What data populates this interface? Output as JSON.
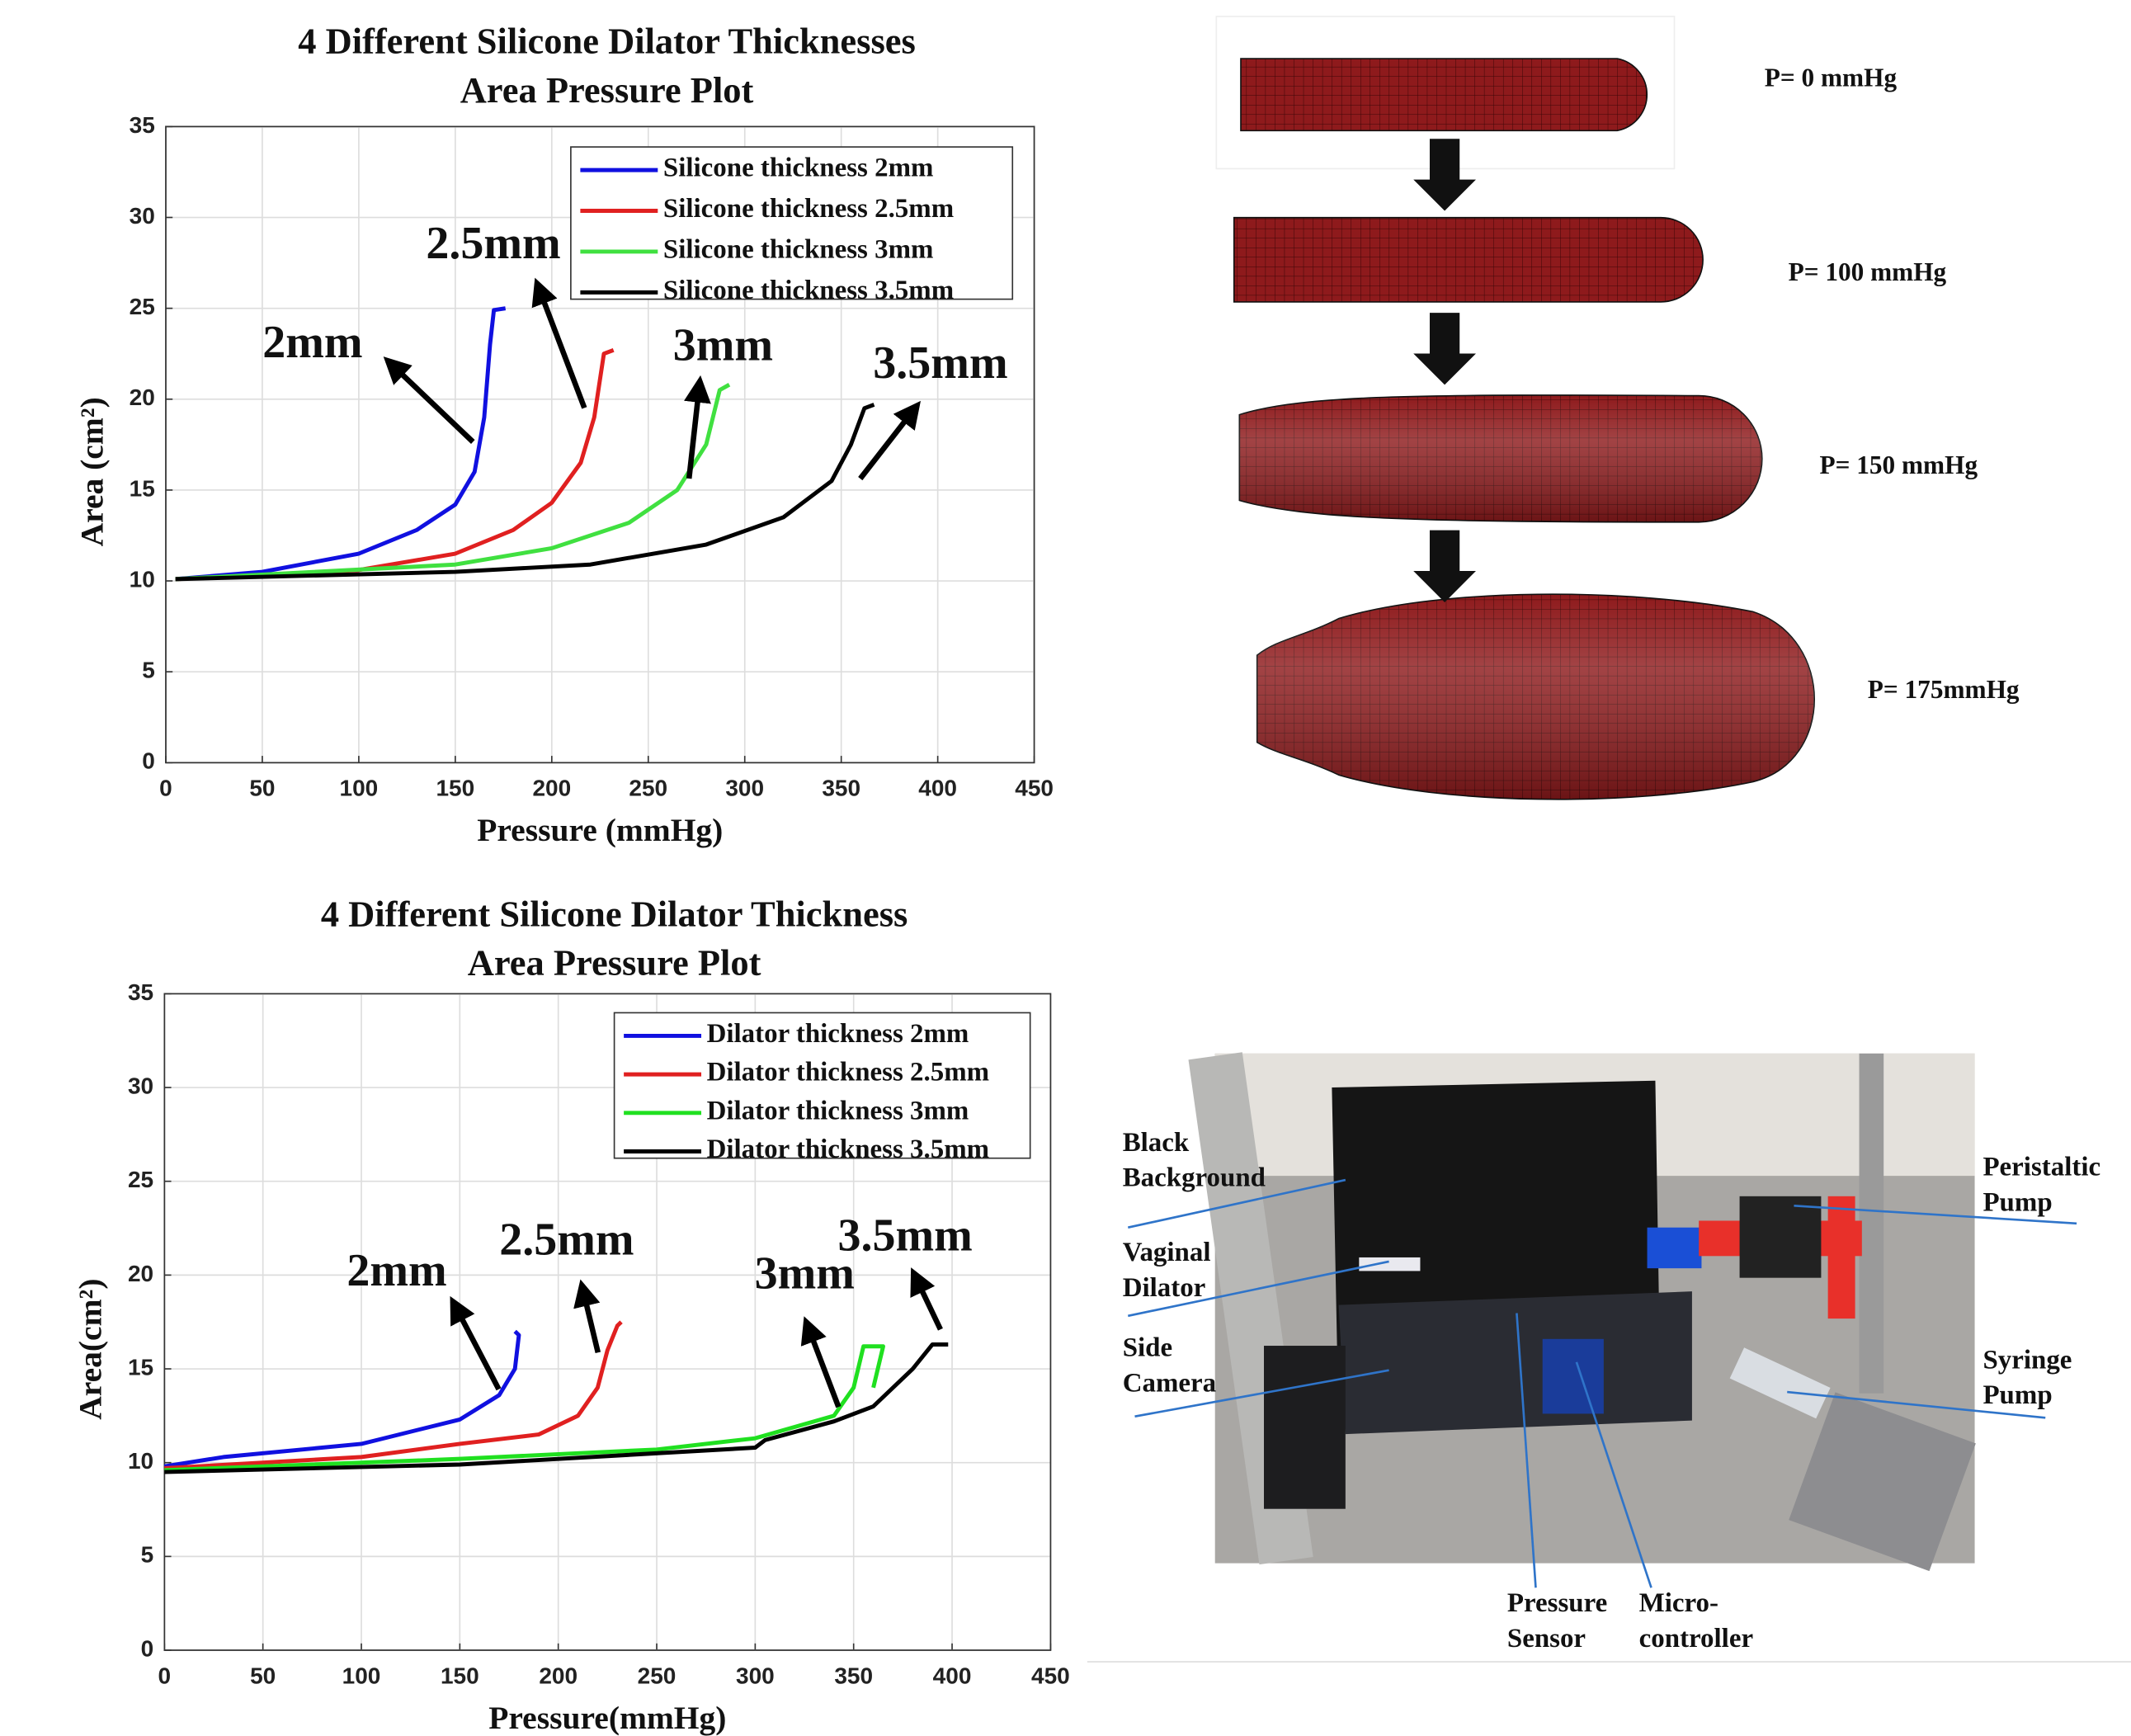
{
  "chart_data": [
    {
      "type": "line",
      "title": "4 Different Silicone Dilator Thicknesses",
      "subtitle": "Area Pressure Plot",
      "x_label": "Pressure (mmHg)",
      "y_label": "Area (cm²)",
      "xlim": [
        0,
        450
      ],
      "ylim": [
        0,
        35
      ],
      "xticks": [
        0,
        50,
        100,
        150,
        200,
        250,
        300,
        350,
        400,
        450
      ],
      "yticks": [
        0,
        5,
        10,
        15,
        20,
        25,
        30,
        35
      ],
      "grid": true,
      "legend": "upper right",
      "series": [
        {
          "name": "Silicone thickness 2mm",
          "color": "#1010e0",
          "x": [
            5,
            50,
            100,
            130,
            150,
            160,
            165,
            168,
            170,
            176
          ],
          "values": [
            10.1,
            10.5,
            11.5,
            12.8,
            14.2,
            16,
            19,
            23,
            24.9,
            25
          ]
        },
        {
          "name": "Silicone thickness 2.5mm",
          "color": "#e02020",
          "x": [
            5,
            100,
            150,
            180,
            200,
            215,
            222,
            227,
            232
          ],
          "values": [
            10.1,
            10.6,
            11.5,
            12.8,
            14.3,
            16.5,
            19,
            22.5,
            22.7
          ]
        },
        {
          "name": "Silicone thickness 3mm",
          "color": "#40e040",
          "x": [
            5,
            150,
            200,
            240,
            265,
            280,
            287,
            292
          ],
          "values": [
            10.1,
            10.9,
            11.8,
            13.2,
            15,
            17.5,
            20.5,
            20.8
          ]
        },
        {
          "name": "Silicone thickness 3.5mm",
          "color": "#000000",
          "x": [
            5,
            150,
            220,
            280,
            320,
            345,
            355,
            362,
            367
          ],
          "values": [
            10.1,
            10.5,
            10.9,
            12,
            13.5,
            15.5,
            17.5,
            19.5,
            19.7
          ]
        }
      ],
      "annotations": [
        "2mm",
        "2.5mm",
        "3mm",
        "3.5mm"
      ]
    },
    {
      "type": "line",
      "title": "4 Different Silicone Dilator Thickness",
      "subtitle": "Area Pressure Plot",
      "x_label": "Pressure(mmHg)",
      "y_label": "Area(cm²)",
      "xlim": [
        0,
        450
      ],
      "ylim": [
        0,
        35
      ],
      "xticks": [
        0,
        50,
        100,
        150,
        200,
        250,
        300,
        350,
        400,
        450
      ],
      "yticks": [
        0,
        5,
        10,
        15,
        20,
        25,
        30,
        35
      ],
      "grid": true,
      "legend": "upper right",
      "series": [
        {
          "name": "Dilator thickness 2mm",
          "color": "#1010e0",
          "x": [
            0,
            30,
            100,
            150,
            170,
            178,
            180,
            178
          ],
          "values": [
            9.8,
            10.3,
            11,
            12.3,
            13.6,
            15,
            16.8,
            17
          ]
        },
        {
          "name": "Dilator thickness 2.5mm",
          "color": "#e02020",
          "x": [
            0,
            100,
            150,
            190,
            210,
            220,
            225,
            230,
            232
          ],
          "values": [
            9.7,
            10.3,
            11,
            11.5,
            12.5,
            14,
            16,
            17.3,
            17.5
          ]
        },
        {
          "name": "Dilator thickness 3mm",
          "color": "#20e020",
          "x": [
            0,
            150,
            250,
            300,
            340,
            350,
            355,
            365,
            360
          ],
          "values": [
            9.6,
            10.2,
            10.7,
            11.3,
            12.5,
            14,
            16.2,
            16.2,
            14
          ]
        },
        {
          "name": "Dilator thickness 3.5mm",
          "color": "#000000",
          "x": [
            0,
            150,
            300,
            305,
            340,
            360,
            380,
            390,
            398
          ],
          "values": [
            9.5,
            9.9,
            10.8,
            11.2,
            12.2,
            13,
            15,
            16.3,
            16.3
          ]
        }
      ],
      "annotations": [
        "2mm",
        "2.5mm",
        "3mm",
        "3.5mm"
      ]
    }
  ],
  "diagram": {
    "labels": [
      "P= 0 mmHg",
      "P= 100 mmHg",
      "P= 150 mmHg",
      "P= 175mmHg"
    ]
  },
  "photo": {
    "labels": [
      [
        "Black",
        "Background"
      ],
      [
        "Vaginal",
        "Dilator"
      ],
      [
        "Side",
        "Camera"
      ],
      [
        "Peristaltic",
        "Pump"
      ],
      [
        "Syringe",
        "Pump"
      ],
      [
        "Pressure",
        "Sensor"
      ],
      [
        "Micro-",
        "controller"
      ]
    ]
  }
}
